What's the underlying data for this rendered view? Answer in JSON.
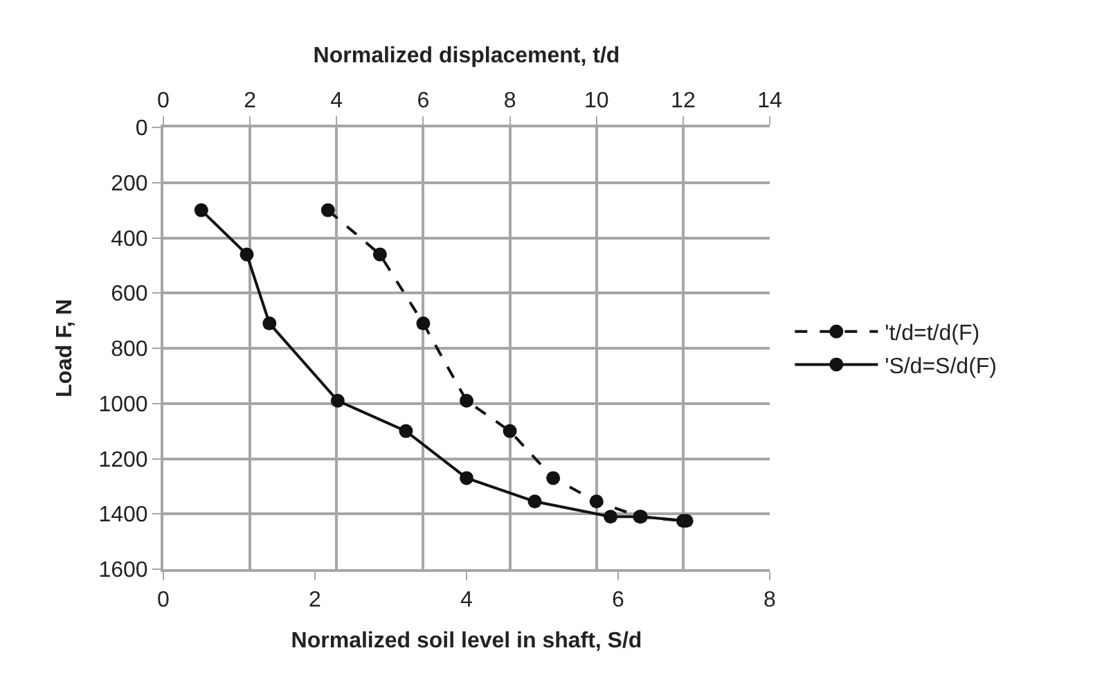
{
  "chart_data": {
    "type": "line",
    "xlabel": "Normalized soil level in shaft, S/d",
    "x2label": "Normalized displacement, t/d",
    "ylabel": "Load F, N",
    "xlim": [
      0,
      8
    ],
    "xticks": [
      0,
      2,
      4,
      6,
      8
    ],
    "x2lim": [
      0,
      14
    ],
    "x2ticks": [
      0,
      2,
      4,
      6,
      8,
      10,
      12,
      14
    ],
    "ylim": [
      1600,
      0
    ],
    "yticks": [
      0,
      200,
      400,
      600,
      800,
      1000,
      1200,
      1400,
      1600
    ],
    "grid": true,
    "legend": "right",
    "marker": "circle",
    "series": [
      {
        "name": "'t/d=t/d(F)",
        "color": "#111111",
        "axis": "x2",
        "line_style": "dashed",
        "x": [
          3.8,
          5,
          6,
          7,
          8,
          9,
          10,
          11,
          12
        ],
        "values": [
          300,
          460,
          710,
          990,
          1100,
          1270,
          1355,
          1410,
          1425
        ]
      },
      {
        "name": "'S/d=S/d(F)",
        "color": "#111111",
        "line_style": "solid",
        "x": [
          0.5,
          1.1,
          1.4,
          2.3,
          3.2,
          4.0,
          4.9,
          5.9,
          6.3,
          6.9
        ],
        "values": [
          300,
          460,
          710,
          990,
          1100,
          1270,
          1355,
          1410,
          1410,
          1425
        ]
      }
    ]
  }
}
